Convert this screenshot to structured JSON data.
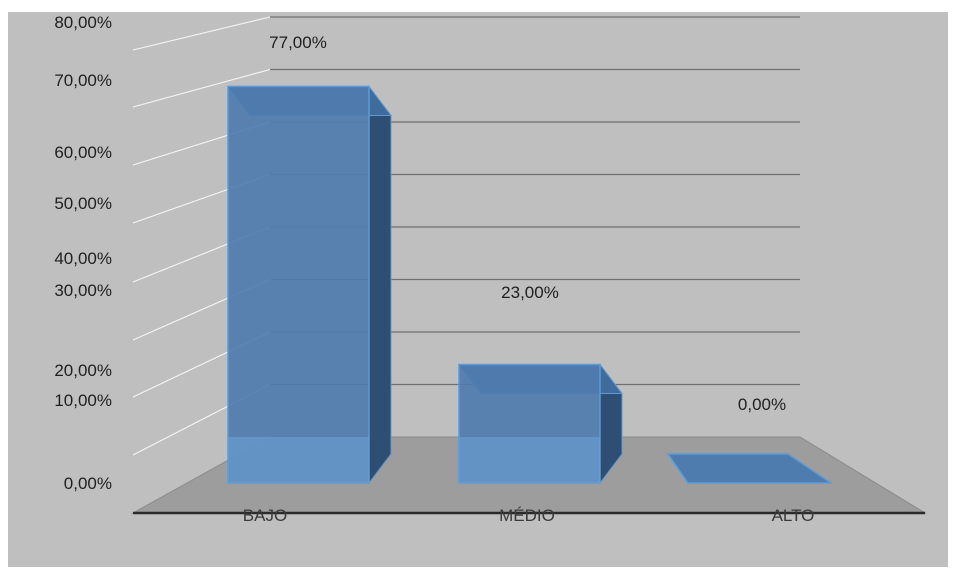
{
  "chart_data": {
    "type": "bar",
    "categories": [
      "BAJO",
      "MÉDIO",
      "ALTO"
    ],
    "values": [
      77,
      23,
      0
    ],
    "value_labels": [
      "77,00%",
      "23,00%",
      "0,00%"
    ],
    "y_tick_labels": [
      "0,00%",
      "10,00%",
      "20,00%",
      "30,00%",
      "40,00%",
      "50,00%",
      "60,00%",
      "70,00%",
      "80,00%"
    ],
    "ylim": [
      0,
      80
    ],
    "grid": true,
    "legend": "none",
    "colors": {
      "bar_front": "#4f7caf",
      "bar_side": "#2e4f73",
      "bar_top": "#3f6b9d",
      "bar_edge": "#5b9bd5",
      "floor": "#9d9d9d",
      "background": "#bfbfbf"
    }
  }
}
